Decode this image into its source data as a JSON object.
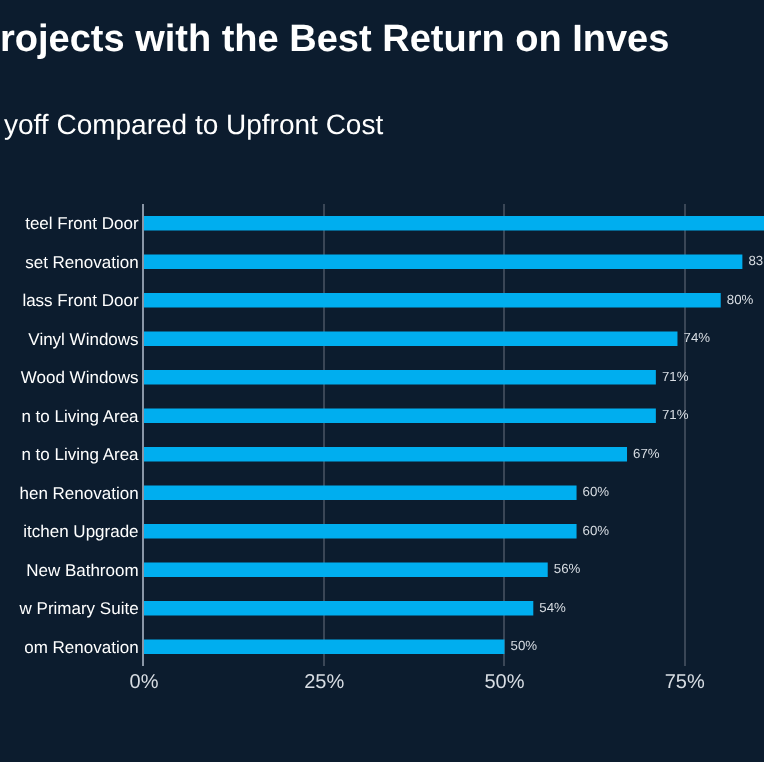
{
  "chart_data": {
    "type": "bar",
    "orientation": "horizontal",
    "title": "rojects with the Best Return on Inves",
    "subtitle": "yoff Compared to Upfront Cost",
    "categories": [
      "teel Front Door",
      "set Renovation",
      "lass Front Door",
      "Vinyl Windows",
      "Wood Windows",
      "n to Living Area",
      "n to Living Area",
      "hen Renovation",
      "itchen Upgrade",
      "New Bathroom",
      "w Primary Suite",
      "om Renovation"
    ],
    "values": [
      86,
      83,
      80,
      74,
      71,
      71,
      67,
      60,
      60,
      56,
      54,
      50
    ],
    "value_labels": [
      null,
      "83",
      "80%",
      "74%",
      "71%",
      "71%",
      "67%",
      "60%",
      "60%",
      "56%",
      "54%",
      "50%"
    ],
    "color": "#00aeef",
    "xlim": [
      0,
      86
    ],
    "xticks": [
      {
        "value": 0,
        "label": "0%"
      },
      {
        "value": 25,
        "label": "25%"
      },
      {
        "value": 50,
        "label": "50%"
      },
      {
        "value": 75,
        "label": "75%"
      }
    ],
    "grid": "x"
  }
}
